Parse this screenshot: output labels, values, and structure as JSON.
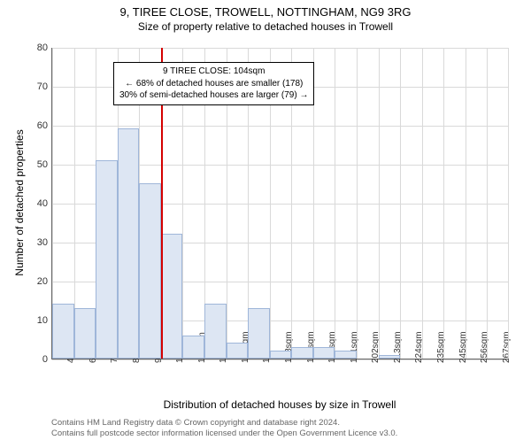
{
  "title": "9, TIREE CLOSE, TROWELL, NOTTINGHAM, NG9 3RG",
  "subtitle": "Size of property relative to detached houses in Trowell",
  "ylabel": "Number of detached properties",
  "xlabel": "Distribution of detached houses by size in Trowell",
  "attribution_line1": "Contains HM Land Registry data © Crown copyright and database right 2024.",
  "attribution_line2": "Contains full postcode sector information licensed under the Open Government Licence v3.0.",
  "annotation": {
    "line1": "9 TIREE CLOSE: 104sqm",
    "line2": "← 68% of detached houses are smaller (178)",
    "line3": "30% of semi-detached houses are larger (79) →"
  },
  "chart": {
    "type": "histogram",
    "ylim": [
      0,
      80
    ],
    "ytick_step": 10,
    "x_categories": [
      "49sqm",
      "60sqm",
      "71sqm",
      "82sqm",
      "93sqm",
      "104sqm",
      "114sqm",
      "125sqm",
      "136sqm",
      "147sqm",
      "158sqm",
      "169sqm",
      "180sqm",
      "191sqm",
      "202sqm",
      "213sqm",
      "224sqm",
      "235sqm",
      "245sqm",
      "256sqm",
      "267sqm"
    ],
    "values": [
      14,
      13,
      51,
      59,
      45,
      32,
      6,
      14,
      4,
      13,
      2,
      3,
      3,
      2,
      0,
      1,
      0,
      0,
      0,
      0,
      0
    ],
    "bar_color": "#dde6f3",
    "bar_border": "#9fb6d9",
    "grid_color": "#d9d9d9",
    "axis_color": "#666666",
    "reference_line": {
      "x_index": 5,
      "color": "#d40000"
    },
    "background": "#ffffff",
    "title_fontsize": 13,
    "subtitle_fontsize": 12,
    "label_fontsize": 12,
    "tick_fontsize": 11
  }
}
